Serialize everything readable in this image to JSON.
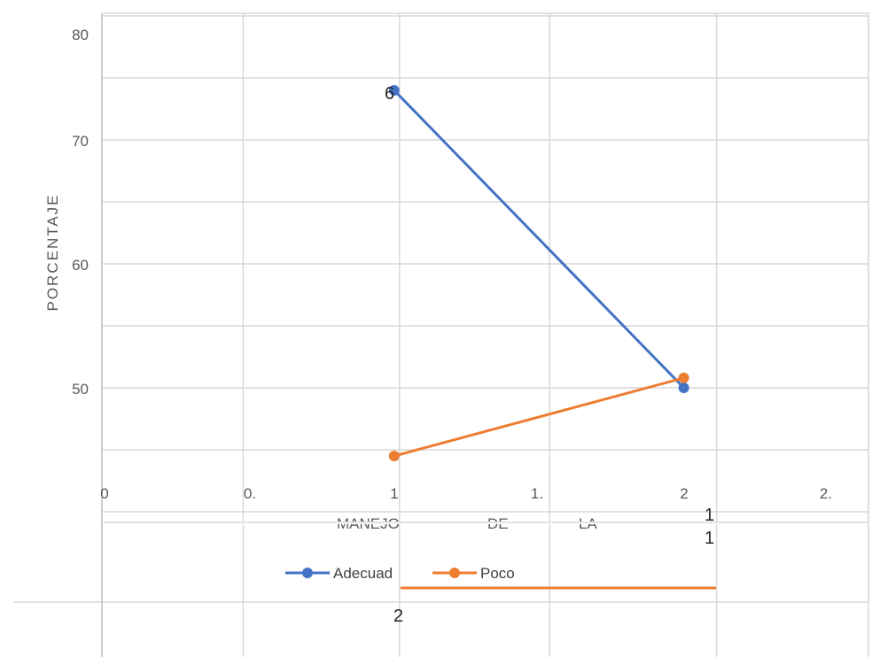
{
  "chart_data": {
    "type": "line",
    "ylabel": "PORCENTAJE",
    "xlabel_words": [
      "MANEJO",
      "DE",
      "LA"
    ],
    "yticks": [
      "80",
      "70",
      "60",
      "50"
    ],
    "xticks": [
      "0",
      "0.",
      "1",
      "1.",
      "2",
      "2."
    ],
    "ylim": [
      40,
      80
    ],
    "xlim": [
      0,
      2.5
    ],
    "grid": true,
    "legend_position": "bottom",
    "series": [
      {
        "name": "Adecuad",
        "color": "#4472C4",
        "x": [
          1,
          2
        ],
        "y": [
          74,
          50
        ]
      },
      {
        "name": "Poco",
        "color": "#ED7D31",
        "x": [
          1,
          2
        ],
        "y": [
          44.5,
          50.8
        ]
      }
    ],
    "data_labels": {
      "point_label": "6",
      "right_labels": [
        "1",
        "1"
      ],
      "bottom_label": "2"
    }
  }
}
